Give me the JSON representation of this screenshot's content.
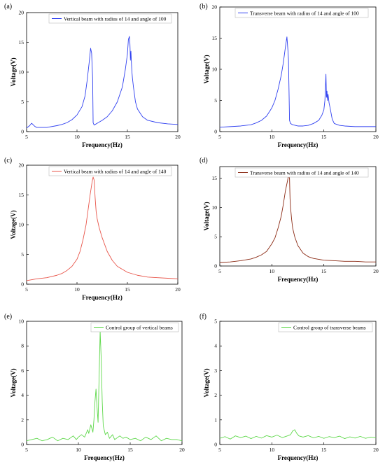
{
  "chart_data": [
    {
      "type": "line",
      "panel_label": "(a)",
      "xlabel": "Frequency(Hz)",
      "ylabel": "Voltage(V)",
      "xlim": [
        5,
        20
      ],
      "ylim": [
        0,
        20
      ],
      "xticks": [
        5,
        10,
        15,
        20
      ],
      "yticks": [
        0,
        5,
        10,
        15,
        20
      ],
      "grid": false,
      "legend_position": "top-right",
      "series": [
        {
          "name": "Vertical beam with radius of 14 and angle of 100",
          "color": "#2e3ff0",
          "x": [
            5.0,
            5.3,
            5.5,
            5.8,
            6.0,
            7.0,
            8.0,
            8.5,
            9.0,
            9.5,
            10.0,
            10.5,
            10.8,
            11.0,
            11.2,
            11.35,
            11.45,
            11.55,
            11.6,
            11.7,
            11.8,
            12.0,
            12.5,
            13.0,
            13.5,
            14.0,
            14.5,
            14.8,
            15.0,
            15.1,
            15.2,
            15.25,
            15.3,
            15.35,
            15.4,
            15.45,
            15.5,
            15.6,
            15.8,
            16.0,
            16.5,
            17.0,
            18.0,
            19.0,
            20.0
          ],
          "y": [
            0.6,
            1.0,
            1.4,
            0.9,
            0.7,
            0.7,
            1.0,
            1.2,
            1.5,
            2.0,
            2.8,
            4.2,
            6.0,
            8.5,
            11.5,
            14.0,
            13.2,
            9.0,
            1.5,
            1.1,
            1.2,
            1.4,
            1.9,
            2.5,
            3.5,
            5.0,
            7.5,
            10.5,
            13.0,
            15.5,
            16.0,
            14.8,
            12.0,
            13.5,
            11.5,
            10.0,
            9.0,
            7.5,
            5.0,
            3.8,
            2.5,
            1.9,
            1.5,
            1.3,
            1.2
          ]
        }
      ]
    },
    {
      "type": "line",
      "panel_label": "(b)",
      "xlabel": "Frequency(Hz)",
      "ylabel": "Voltage(V)",
      "xlim": [
        5,
        20
      ],
      "ylim": [
        0,
        20
      ],
      "xticks": [
        5,
        10,
        15,
        20
      ],
      "yticks": [
        0,
        5,
        10,
        15,
        20
      ],
      "grid": false,
      "legend_position": "top-right",
      "series": [
        {
          "name": "Transverse beam with radius of 14 and angle of 100",
          "color": "#2e3ff0",
          "x": [
            5.0,
            6.0,
            7.0,
            8.0,
            8.5,
            9.0,
            9.5,
            10.0,
            10.3,
            10.6,
            10.9,
            11.1,
            11.3,
            11.45,
            11.55,
            11.6,
            11.7,
            11.8,
            12.0,
            12.5,
            13.0,
            13.5,
            14.0,
            14.5,
            14.8,
            15.0,
            15.1,
            15.2,
            15.25,
            15.3,
            15.35,
            15.4,
            15.45,
            15.5,
            15.6,
            15.8,
            16.0,
            16.5,
            17.0,
            18.0,
            19.0,
            20.0
          ],
          "y": [
            0.7,
            0.8,
            0.9,
            1.1,
            1.4,
            1.8,
            2.5,
            3.8,
            5.0,
            6.8,
            9.0,
            11.0,
            13.5,
            15.2,
            13.0,
            11.5,
            1.8,
            1.3,
            1.1,
            0.9,
            0.9,
            1.0,
            1.3,
            1.8,
            2.6,
            3.5,
            5.0,
            9.2,
            5.5,
            6.5,
            5.0,
            6.0,
            5.3,
            4.6,
            3.8,
            2.0,
            1.3,
            1.0,
            0.9,
            0.8,
            0.8,
            0.8
          ]
        }
      ]
    },
    {
      "type": "line",
      "panel_label": "(c)",
      "xlabel": "Frequency(Hz)",
      "ylabel": "Voltage(V)",
      "xlim": [
        5,
        20
      ],
      "ylim": [
        0,
        20
      ],
      "xticks": [
        5,
        10,
        15,
        20
      ],
      "yticks": [
        0,
        5,
        10,
        15,
        20
      ],
      "grid": false,
      "legend_position": "top-right",
      "series": [
        {
          "name": "Vertical beam with radius of 14 and angle of 140",
          "color": "#e8554a",
          "x": [
            5.0,
            6.0,
            7.0,
            8.0,
            8.5,
            9.0,
            9.5,
            10.0,
            10.3,
            10.6,
            10.9,
            11.1,
            11.3,
            11.5,
            11.6,
            11.7,
            11.8,
            11.9,
            12.0,
            12.2,
            12.5,
            13.0,
            13.5,
            14.0,
            15.0,
            16.0,
            17.0,
            18.0,
            19.0,
            20.0
          ],
          "y": [
            0.6,
            0.9,
            1.1,
            1.5,
            1.8,
            2.3,
            3.0,
            4.2,
            5.5,
            7.5,
            10.0,
            12.5,
            15.0,
            17.2,
            18.0,
            17.5,
            14.5,
            12.2,
            11.0,
            9.5,
            7.8,
            5.5,
            4.0,
            3.0,
            2.0,
            1.5,
            1.2,
            1.1,
            1.0,
            0.9
          ]
        }
      ]
    },
    {
      "type": "line",
      "panel_label": "(d)",
      "xlabel": "Frequency(Hz)",
      "ylabel": "Voltage(V)",
      "xlim": [
        5,
        20
      ],
      "ylim": [
        0,
        17
      ],
      "xticks": [
        5,
        10,
        15,
        20
      ],
      "yticks": [
        0,
        5,
        10,
        15
      ],
      "grid": false,
      "legend_position": "top-right",
      "series": [
        {
          "name": "Transverse beam with radius of 14 and angle of 140",
          "color": "#8b2a14",
          "x": [
            5.0,
            6.0,
            7.0,
            8.0,
            8.5,
            9.0,
            9.5,
            10.0,
            10.3,
            10.6,
            10.9,
            11.1,
            11.3,
            11.5,
            11.6,
            11.7,
            11.75,
            11.8,
            11.9,
            12.0,
            12.2,
            12.5,
            13.0,
            13.5,
            14.0,
            15.0,
            16.0,
            17.0,
            18.0,
            19.0,
            20.0
          ],
          "y": [
            0.6,
            0.7,
            0.9,
            1.2,
            1.5,
            1.9,
            2.5,
            3.8,
            4.8,
            6.5,
            8.5,
            10.5,
            12.8,
            14.5,
            15.5,
            15.0,
            11.5,
            10.0,
            8.0,
            6.5,
            5.0,
            3.5,
            2.2,
            1.6,
            1.3,
            1.0,
            0.9,
            0.8,
            0.8,
            0.7,
            0.7
          ]
        }
      ]
    },
    {
      "type": "line",
      "panel_label": "(e)",
      "xlabel": "Frequency(Hz)",
      "ylabel": "Voltage(V)",
      "xlim": [
        5,
        20
      ],
      "ylim": [
        0,
        10
      ],
      "xticks": [
        5,
        10,
        15,
        20
      ],
      "yticks": [
        0,
        2,
        4,
        6,
        8,
        10
      ],
      "grid": false,
      "legend_position": "top-right",
      "series": [
        {
          "name": "Control group of vertical beams",
          "color": "#5ed84a",
          "x": [
            5.0,
            5.5,
            6.0,
            6.5,
            7.0,
            7.5,
            8.0,
            8.5,
            9.0,
            9.5,
            9.8,
            10.0,
            10.3,
            10.6,
            10.9,
            11.0,
            11.2,
            11.4,
            11.5,
            11.6,
            11.7,
            11.8,
            11.9,
            12.0,
            12.1,
            12.2,
            12.3,
            12.4,
            12.6,
            12.8,
            13.0,
            13.3,
            13.5,
            14.0,
            14.3,
            14.6,
            15.0,
            15.5,
            16.0,
            16.5,
            17.0,
            17.5,
            18.0,
            18.5,
            19.0,
            19.5,
            20.0
          ],
          "y": [
            0.3,
            0.4,
            0.5,
            0.3,
            0.4,
            0.6,
            0.3,
            0.5,
            0.4,
            0.7,
            0.4,
            0.6,
            0.8,
            0.6,
            1.2,
            0.9,
            1.6,
            1.0,
            2.0,
            3.5,
            4.5,
            3.0,
            1.8,
            5.5,
            9.2,
            7.0,
            3.5,
            1.5,
            0.8,
            1.0,
            0.5,
            0.8,
            0.4,
            0.7,
            0.5,
            0.6,
            0.4,
            0.5,
            0.3,
            0.6,
            0.4,
            0.7,
            0.3,
            0.5,
            0.4,
            0.4,
            0.3
          ]
        }
      ]
    },
    {
      "type": "line",
      "panel_label": "(f)",
      "xlabel": "Frequency(Hz)",
      "ylabel": "Voltage(V)",
      "xlim": [
        5,
        20
      ],
      "ylim": [
        0,
        5
      ],
      "xticks": [
        5,
        10,
        15,
        20
      ],
      "yticks": [
        0,
        1,
        2,
        3,
        4,
        5
      ],
      "grid": false,
      "legend_position": "top-right",
      "series": [
        {
          "name": "Control group of transverse beams",
          "color": "#5ed84a",
          "x": [
            5.0,
            5.5,
            6.0,
            6.5,
            7.0,
            7.5,
            8.0,
            8.5,
            9.0,
            9.5,
            10.0,
            10.5,
            11.0,
            11.5,
            11.8,
            12.0,
            12.2,
            12.4,
            12.6,
            13.0,
            13.5,
            14.0,
            14.5,
            15.0,
            15.5,
            16.0,
            16.5,
            17.0,
            17.5,
            18.0,
            18.5,
            19.0,
            19.5,
            20.0
          ],
          "y": [
            0.25,
            0.32,
            0.22,
            0.35,
            0.28,
            0.34,
            0.24,
            0.33,
            0.26,
            0.36,
            0.3,
            0.38,
            0.28,
            0.35,
            0.4,
            0.55,
            0.6,
            0.45,
            0.35,
            0.3,
            0.36,
            0.27,
            0.33,
            0.25,
            0.32,
            0.28,
            0.34,
            0.24,
            0.31,
            0.26,
            0.33,
            0.25,
            0.3,
            0.28
          ]
        }
      ]
    }
  ]
}
